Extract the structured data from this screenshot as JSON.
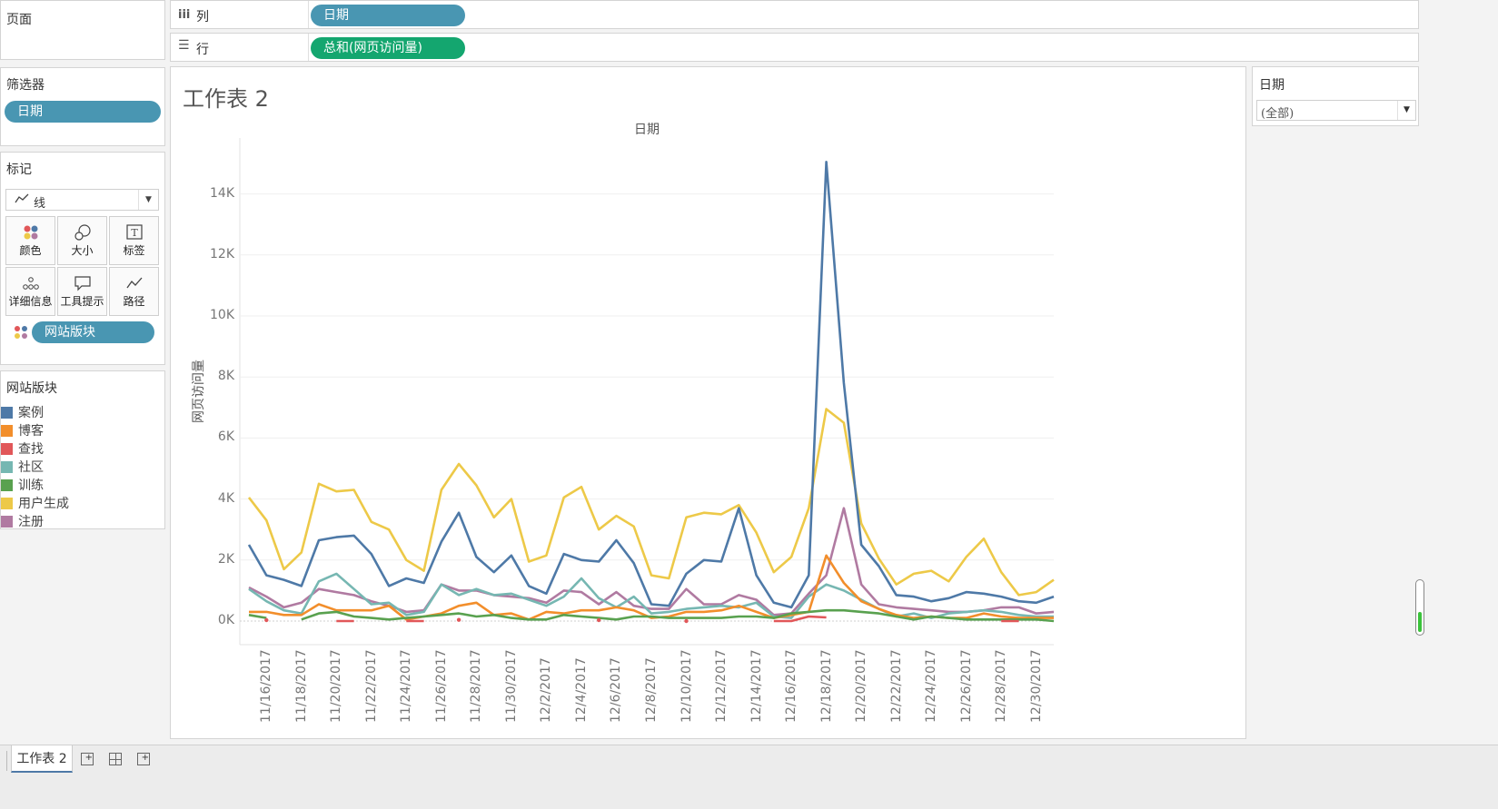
{
  "shelves": {
    "pages_label": "页面",
    "columns_icon": "columns-icon",
    "columns_label": "列",
    "columns_pill": "日期",
    "rows_icon": "rows-icon",
    "rows_label": "行",
    "rows_pill": "总和(网页访问量)"
  },
  "filters": {
    "title": "筛选器",
    "pill": "日期"
  },
  "marks": {
    "title": "标记",
    "type": "线",
    "buttons": [
      {
        "icon": "color-icon",
        "label": "颜色"
      },
      {
        "icon": "size-icon",
        "label": "大小"
      },
      {
        "icon": "label-icon",
        "label": "标签"
      },
      {
        "icon": "detail-icon",
        "label": "详细信息"
      },
      {
        "icon": "tooltip-icon",
        "label": "工具提示"
      },
      {
        "icon": "path-icon",
        "label": "路径"
      }
    ],
    "color_pill": "网站版块"
  },
  "legend": {
    "title": "网站版块",
    "items": [
      {
        "label": "案例",
        "color": "#4e79a7"
      },
      {
        "label": "博客",
        "color": "#f28e2b"
      },
      {
        "label": "查找",
        "color": "#e15759"
      },
      {
        "label": "社区",
        "color": "#76b7b2"
      },
      {
        "label": "训练",
        "color": "#59a14f"
      },
      {
        "label": "用户生成",
        "color": "#edc948"
      },
      {
        "label": "注册",
        "color": "#b07aa1"
      }
    ]
  },
  "right_filter": {
    "title": "日期",
    "value": "(全部)"
  },
  "sheet": {
    "title": "工作表 2"
  },
  "tabs": {
    "active": "工作表 2"
  },
  "chart_data": {
    "type": "line",
    "title": "日期",
    "xlabel": "",
    "ylabel": "网页访问量",
    "ylim": [
      0,
      15800
    ],
    "y_ticks": [
      "0K",
      "2K",
      "4K",
      "6K",
      "8K",
      "10K",
      "12K",
      "14K"
    ],
    "x_tick_labels": [
      "11/16/2017",
      "11/18/2017",
      "11/20/2017",
      "11/22/2017",
      "11/24/2017",
      "11/26/2017",
      "11/28/2017",
      "11/30/2017",
      "12/2/2017",
      "12/4/2017",
      "12/6/2017",
      "12/8/2017",
      "12/10/2017",
      "12/12/2017",
      "12/14/2017",
      "12/16/2017",
      "12/18/2017",
      "12/20/2017",
      "12/22/2017",
      "12/24/2017",
      "12/26/2017",
      "12/28/2017",
      "12/30/2017"
    ],
    "x": [
      "11/15/2017",
      "11/16/2017",
      "11/17/2017",
      "11/18/2017",
      "11/19/2017",
      "11/20/2017",
      "11/21/2017",
      "11/22/2017",
      "11/23/2017",
      "11/24/2017",
      "11/25/2017",
      "11/26/2017",
      "11/27/2017",
      "11/28/2017",
      "11/29/2017",
      "11/30/2017",
      "12/1/2017",
      "12/2/2017",
      "12/3/2017",
      "12/4/2017",
      "12/5/2017",
      "12/6/2017",
      "12/7/2017",
      "12/8/2017",
      "12/9/2017",
      "12/10/2017",
      "12/11/2017",
      "12/12/2017",
      "12/13/2017",
      "12/14/2017",
      "12/15/2017",
      "12/16/2017",
      "12/17/2017",
      "12/18/2017",
      "12/19/2017",
      "12/20/2017",
      "12/21/2017",
      "12/22/2017",
      "12/23/2017",
      "12/24/2017",
      "12/25/2017",
      "12/26/2017",
      "12/27/2017",
      "12/28/2017",
      "12/29/2017",
      "12/30/2017",
      "12/31/2017"
    ],
    "series": [
      {
        "name": "用户生成",
        "color": "#edc948",
        "values": [
          4050,
          3300,
          1700,
          2250,
          4500,
          4250,
          4300,
          3250,
          3000,
          2000,
          1650,
          4300,
          5150,
          4450,
          3400,
          4000,
          1950,
          2150,
          4050,
          4400,
          3000,
          3450,
          3100,
          1500,
          1400,
          3400,
          3550,
          3500,
          3800,
          2900,
          1600,
          2100,
          3700,
          6950,
          6500,
          3200,
          2050,
          1200,
          1550,
          1650,
          1300,
          2100,
          2700,
          1600,
          850,
          950,
          1350
        ]
      },
      {
        "name": "案例",
        "color": "#4e79a7",
        "values": [
          2500,
          1500,
          1350,
          1150,
          2650,
          2750,
          2800,
          2200,
          1150,
          1400,
          1250,
          2600,
          3550,
          2100,
          1600,
          2150,
          1150,
          900,
          2200,
          2000,
          1950,
          2650,
          1900,
          550,
          500,
          1550,
          2000,
          1950,
          3700,
          1500,
          600,
          450,
          1500,
          15050,
          7800,
          2500,
          1800,
          850,
          800,
          650,
          750,
          950,
          900,
          800,
          650,
          600,
          800
        ]
      },
      {
        "name": "注册",
        "color": "#b07aa1",
        "values": [
          1100,
          800,
          450,
          600,
          1050,
          950,
          850,
          650,
          500,
          300,
          350,
          1200,
          1000,
          1000,
          850,
          800,
          750,
          600,
          1000,
          950,
          550,
          950,
          500,
          400,
          400,
          1050,
          550,
          550,
          850,
          700,
          200,
          250,
          900,
          1500,
          3700,
          1200,
          550,
          450,
          400,
          350,
          300,
          300,
          350,
          450,
          450,
          250,
          300
        ]
      },
      {
        "name": "社区",
        "color": "#76b7b2",
        "values": [
          1050,
          650,
          350,
          250,
          1300,
          1550,
          1050,
          550,
          600,
          200,
          300,
          1200,
          850,
          1050,
          850,
          900,
          700,
          500,
          800,
          1400,
          750,
          450,
          800,
          250,
          300,
          400,
          450,
          500,
          450,
          600,
          150,
          100,
          800,
          1200,
          1000,
          700,
          400,
          150,
          250,
          100,
          250,
          300,
          350,
          300,
          200,
          150,
          150
        ]
      },
      {
        "name": "博客",
        "color": "#f28e2b",
        "values": [
          300,
          300,
          200,
          200,
          550,
          350,
          350,
          350,
          500,
          50,
          150,
          250,
          500,
          600,
          200,
          250,
          50,
          300,
          250,
          350,
          350,
          450,
          350,
          100,
          150,
          300,
          300,
          350,
          500,
          300,
          100,
          200,
          300,
          2150,
          1250,
          650,
          400,
          200,
          100,
          150,
          100,
          100,
          250,
          150,
          100,
          100,
          100
        ]
      },
      {
        "name": "训练",
        "color": "#59a14f",
        "values": [
          200,
          100,
          null,
          50,
          250,
          300,
          150,
          100,
          50,
          100,
          150,
          200,
          250,
          150,
          200,
          100,
          50,
          50,
          200,
          150,
          100,
          50,
          150,
          150,
          100,
          100,
          100,
          100,
          150,
          150,
          100,
          250,
          300,
          350,
          350,
          300,
          250,
          150,
          50,
          150,
          100,
          50,
          50,
          50,
          50,
          50,
          0
        ]
      },
      {
        "name": "查找",
        "color": "#e15759",
        "values": [
          null,
          30,
          null,
          null,
          null,
          0,
          0,
          null,
          null,
          0,
          0,
          null,
          40,
          null,
          null,
          null,
          null,
          null,
          null,
          null,
          30,
          null,
          null,
          null,
          null,
          0,
          null,
          null,
          null,
          null,
          0,
          0,
          150,
          120,
          null,
          null,
          null,
          null,
          null,
          null,
          null,
          null,
          null,
          0,
          0,
          null,
          null
        ]
      }
    ]
  }
}
